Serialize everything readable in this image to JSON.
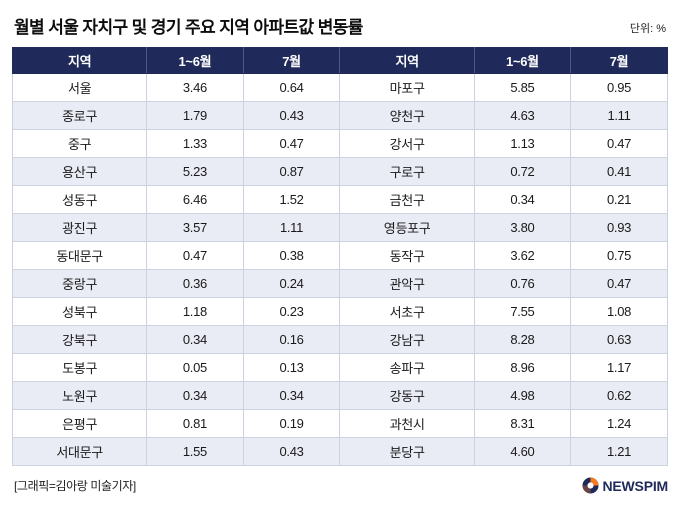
{
  "page": {
    "title": "월별 서울 자치구 및 경기 주요 지역 아파트값 변동률",
    "unit_label": "단위: %",
    "credit": "[그래픽=김아랑 미술기자]",
    "logo_text": "NEWSPIM"
  },
  "colors": {
    "header_bg": "#1f2a5a",
    "alt_row_bg": "#e9ecf5",
    "border": "#ccd2e0",
    "logo_navy": "#1f2a5a",
    "logo_orange": "#f47b20"
  },
  "chart_data": {
    "type": "table",
    "title": "월별 서울 자치구 및 경기 주요 지역 아파트값 변동률",
    "unit": "%",
    "columns": [
      "지역",
      "1~6월",
      "7월",
      "지역",
      "1~6월",
      "7월"
    ],
    "rows": [
      [
        "서울",
        "3.46",
        "0.64",
        "마포구",
        "5.85",
        "0.95"
      ],
      [
        "종로구",
        "1.79",
        "0.43",
        "양천구",
        "4.63",
        "1.11"
      ],
      [
        "중구",
        "1.33",
        "0.47",
        "강서구",
        "1.13",
        "0.47"
      ],
      [
        "용산구",
        "5.23",
        "0.87",
        "구로구",
        "0.72",
        "0.41"
      ],
      [
        "성동구",
        "6.46",
        "1.52",
        "금천구",
        "0.34",
        "0.21"
      ],
      [
        "광진구",
        "3.57",
        "1.11",
        "영등포구",
        "3.80",
        "0.93"
      ],
      [
        "동대문구",
        "0.47",
        "0.38",
        "동작구",
        "3.62",
        "0.75"
      ],
      [
        "중랑구",
        "0.36",
        "0.24",
        "관악구",
        "0.76",
        "0.47"
      ],
      [
        "성북구",
        "1.18",
        "0.23",
        "서초구",
        "7.55",
        "1.08"
      ],
      [
        "강북구",
        "0.34",
        "0.16",
        "강남구",
        "8.28",
        "0.63"
      ],
      [
        "도봉구",
        "0.05",
        "0.13",
        "송파구",
        "8.96",
        "1.17"
      ],
      [
        "노원구",
        "0.34",
        "0.34",
        "강동구",
        "4.98",
        "0.62"
      ],
      [
        "은평구",
        "0.81",
        "0.19",
        "과천시",
        "8.31",
        "1.24"
      ],
      [
        "서대문구",
        "1.55",
        "0.43",
        "분당구",
        "4.60",
        "1.21"
      ]
    ]
  }
}
